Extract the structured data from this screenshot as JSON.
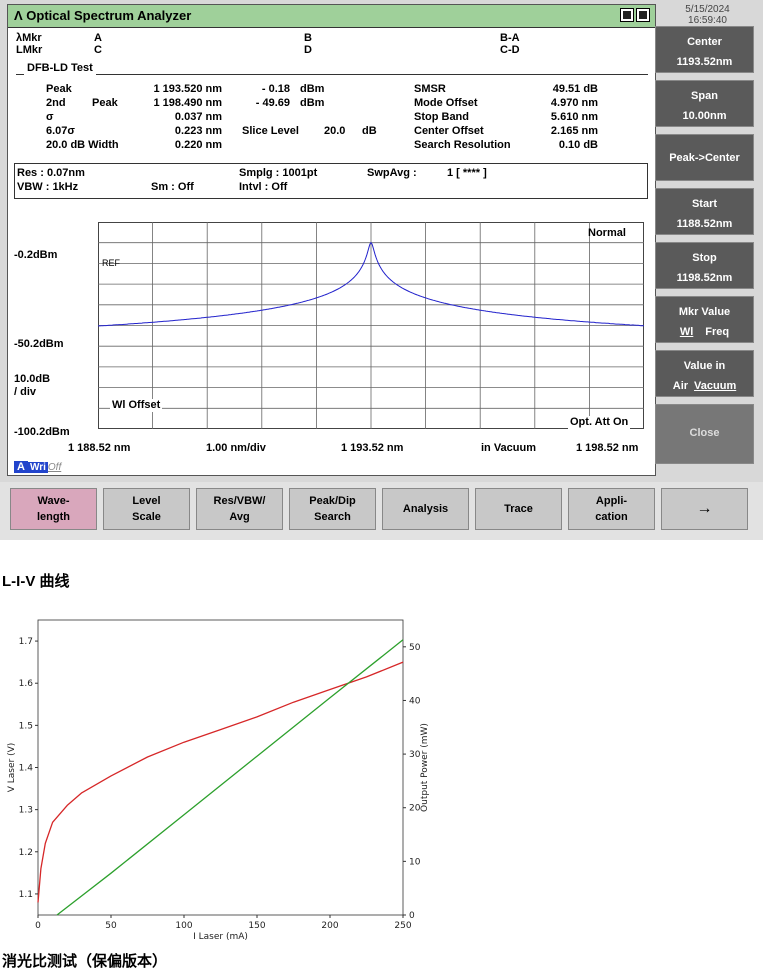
{
  "osa": {
    "title": "Optical Spectrum Analyzer",
    "title_icon": "lambda-icon",
    "datetime": {
      "date": "5/15/2024",
      "time": "16:59:40"
    },
    "markers": {
      "lambda_mkr": "λMkr",
      "l_mkr": "LMkr",
      "a": "A",
      "c": "C",
      "b": "B",
      "d": "D",
      "ba": "B-A",
      "cd": "C-D"
    },
    "test_name": "DFB-LD Test",
    "results": {
      "peak_label": "Peak",
      "peak_wl": "1 193.520 nm",
      "peak_pwr": "- 0.18",
      "peak_unit": "dBm",
      "second_label": "2nd",
      "second_peak": "Peak",
      "second_wl": "1 198.490 nm",
      "second_pwr": "- 49.69",
      "second_unit": "dBm",
      "sigma_label": "σ",
      "sigma_val": "0.037 nm",
      "sigma6_label": "6.07σ",
      "sigma6_val": "0.223 nm",
      "slice_label": "Slice Level",
      "slice_val": "20.0",
      "slice_unit": "dB",
      "width20_label": "20.0 dB Width",
      "width20_val": "0.220 nm",
      "smsr_label": "SMSR",
      "smsr_val": "49.51 dB",
      "mode_offset_label": "Mode Offset",
      "mode_offset_val": "4.970 nm",
      "stop_band_label": "Stop Band",
      "stop_band_val": "5.610 nm",
      "center_offset_label": "Center Offset",
      "center_offset_val": "2.165 nm",
      "search_res_label": "Search Resolution",
      "search_res_val": "0.10 dB"
    },
    "settings": {
      "res": "Res : 0.07nm",
      "vbw": "VBW :   1kHz",
      "sm": "Sm :   Off",
      "smplg": "Smplg :   1001pt",
      "intvl": "Intvl :    Off",
      "swpavg": "SwpAvg :",
      "swpavg_val": "1 [    ****  ]"
    },
    "plot": {
      "mode": "Normal",
      "ref": "REF",
      "y_top": "-0.2dBm",
      "y_mid": "-50.2dBm",
      "y_scale_1": "10.0dB",
      "y_scale_2": "/ div",
      "y_bottom": "-100.2dBm",
      "wl_offset": "Wl Offset",
      "opt_att": "Opt. Att On",
      "x_start": "1 188.52 nm",
      "x_div": "1.00 nm/div",
      "x_center": "1 193.52 nm",
      "x_medium": "in Vacuum",
      "x_stop": "1 198.52 nm",
      "trace_label": "A",
      "trace_mode": "Wri",
      "trace_mode_off": "Off",
      "trace_color": "#2222cc"
    },
    "softkeys": [
      {
        "l1": "Center",
        "l2": "1193.52nm"
      },
      {
        "l1": "Span",
        "l2": "10.00nm"
      },
      {
        "l1": "Peak->Center",
        "l2": ""
      },
      {
        "l1": "Start",
        "l2": "1188.52nm"
      },
      {
        "l1": "Stop",
        "l2": "1198.52nm"
      },
      {
        "l1": "Mkr Value",
        "l2a": "Wl",
        "l2b": "Freq"
      },
      {
        "l1": "Value in",
        "l2a": "Air",
        "l2b": "Vacuum"
      },
      {
        "l1": "Close",
        "l2": ""
      }
    ],
    "bottom_menu": [
      {
        "l1": "Wave-",
        "l2": "length"
      },
      {
        "l1": "Level",
        "l2": "Scale"
      },
      {
        "l1": "Res/VBW/",
        "l2": "Avg"
      },
      {
        "l1": "Peak/Dip",
        "l2": "Search"
      },
      {
        "l1": "Analysis",
        "l2": ""
      },
      {
        "l1": "Trace",
        "l2": ""
      },
      {
        "l1": "Appli-",
        "l2": "cation"
      },
      {
        "l1": "→",
        "l2": ""
      }
    ]
  },
  "section_liv_title": "L-I-V 曲线",
  "section_ext_title": "消光比测试（保偏版本）",
  "chart_data": {
    "type": "line",
    "xlabel": "I Laser (mA)",
    "ylabel": "V Laser (V)",
    "y2label": "Output Power (mW)",
    "xlim": [
      0,
      250
    ],
    "ylim": [
      1.05,
      1.75
    ],
    "y2lim": [
      0,
      55
    ],
    "x_ticks": [
      0,
      50,
      100,
      150,
      200,
      250
    ],
    "y_ticks": [
      1.1,
      1.2,
      1.3,
      1.4,
      1.5,
      1.6,
      1.7
    ],
    "y2_ticks": [
      0,
      10,
      20,
      30,
      40,
      50
    ],
    "series": [
      {
        "axis": "left",
        "color": "#d62728",
        "x": [
          0,
          2,
          5,
          10,
          20,
          30,
          50,
          75,
          100,
          125,
          150,
          175,
          200,
          225,
          250
        ],
        "y": [
          1.08,
          1.16,
          1.22,
          1.27,
          1.31,
          1.34,
          1.38,
          1.425,
          1.46,
          1.49,
          1.52,
          1.555,
          1.585,
          1.615,
          1.65
        ]
      },
      {
        "axis": "right",
        "color": "#2ca02c",
        "x": [
          13,
          50,
          100,
          150,
          200,
          250
        ],
        "y": [
          0,
          7.8,
          18.7,
          29.6,
          40.5,
          51.3
        ]
      }
    ]
  }
}
